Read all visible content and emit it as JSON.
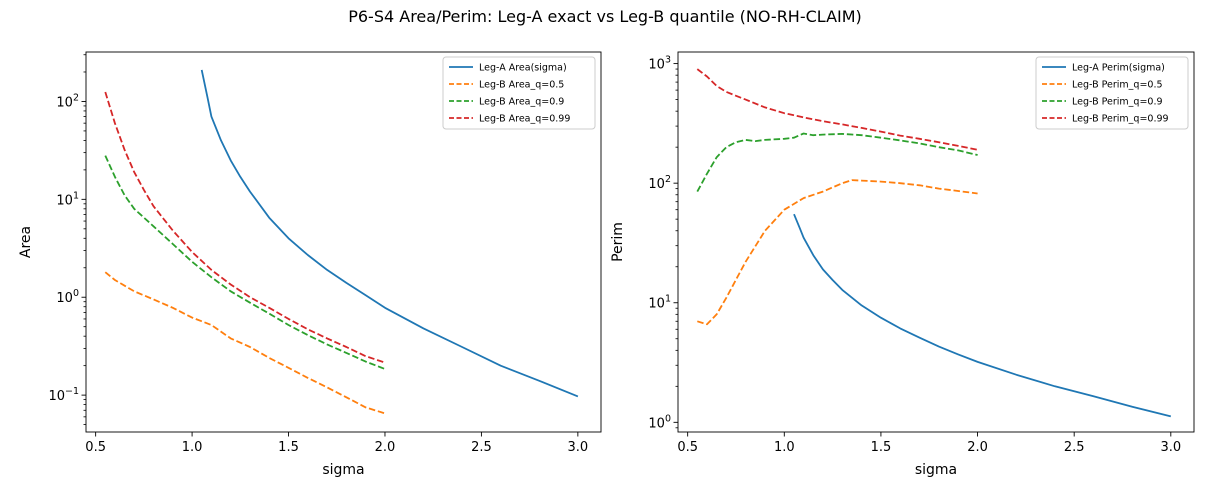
{
  "figure": {
    "title": "P6-S4 Area/Perim: Leg-A exact vs Leg-B quantile (NO-RH-CLAIM)"
  },
  "colors": {
    "blue": "#1f77b4",
    "orange": "#ff7f0e",
    "green": "#2ca02c",
    "red": "#d62728"
  },
  "chart_data": [
    {
      "type": "line",
      "xlabel": "sigma",
      "ylabel": "Area",
      "yscale": "log",
      "xlim": [
        0.45,
        3.12
      ],
      "ylim": [
        0.042,
        320
      ],
      "xticks": [
        0.5,
        1.0,
        1.5,
        2.0,
        2.5,
        3.0
      ],
      "xtick_labels": [
        "0.5",
        "1.0",
        "1.5",
        "2.0",
        "2.5",
        "3.0"
      ],
      "yticks": [
        0.1,
        1,
        10,
        100
      ],
      "ytick_labels": [
        "10^-1",
        "10^0",
        "10^1",
        "10^2"
      ],
      "legend_position": "top-right",
      "series": [
        {
          "name": "Leg-A Area(sigma)",
          "color": "#1f77b4",
          "dash": "solid",
          "x": [
            1.05,
            1.08,
            1.1,
            1.15,
            1.2,
            1.25,
            1.3,
            1.4,
            1.5,
            1.6,
            1.7,
            1.8,
            1.9,
            2.0,
            2.2,
            2.4,
            2.6,
            2.8,
            3.0
          ],
          "y": [
            210,
            110,
            70,
            40,
            25,
            17,
            12,
            6.5,
            4.0,
            2.7,
            1.9,
            1.4,
            1.05,
            0.78,
            0.48,
            0.31,
            0.2,
            0.14,
            0.097
          ]
        },
        {
          "name": "Leg-B Area_q=0.5",
          "color": "#ff7f0e",
          "dash": "dashed",
          "x": [
            0.55,
            0.6,
            0.7,
            0.8,
            0.9,
            1.0,
            1.1,
            1.2,
            1.3,
            1.4,
            1.5,
            1.6,
            1.7,
            1.8,
            1.9,
            2.0
          ],
          "y": [
            1.8,
            1.5,
            1.15,
            0.95,
            0.78,
            0.62,
            0.52,
            0.38,
            0.31,
            0.24,
            0.19,
            0.15,
            0.12,
            0.095,
            0.075,
            0.065
          ]
        },
        {
          "name": "Leg-B Area_q=0.9",
          "color": "#2ca02c",
          "dash": "dashed",
          "x": [
            0.55,
            0.6,
            0.65,
            0.7,
            0.8,
            0.9,
            1.0,
            1.1,
            1.2,
            1.3,
            1.4,
            1.5,
            1.6,
            1.7,
            1.8,
            1.9,
            2.0
          ],
          "y": [
            28,
            17,
            11,
            8.0,
            5.3,
            3.5,
            2.3,
            1.6,
            1.15,
            0.88,
            0.68,
            0.52,
            0.41,
            0.33,
            0.27,
            0.22,
            0.185
          ]
        },
        {
          "name": "Leg-B Area_q=0.99",
          "color": "#d62728",
          "dash": "dashed",
          "x": [
            0.55,
            0.6,
            0.65,
            0.7,
            0.75,
            0.8,
            0.9,
            1.0,
            1.1,
            1.2,
            1.3,
            1.4,
            1.5,
            1.6,
            1.7,
            1.8,
            1.9,
            2.0
          ],
          "y": [
            125,
            60,
            32,
            19,
            12.5,
            8.5,
            4.8,
            2.9,
            1.9,
            1.35,
            1.0,
            0.78,
            0.6,
            0.47,
            0.38,
            0.31,
            0.25,
            0.215
          ]
        }
      ]
    },
    {
      "type": "line",
      "xlabel": "sigma",
      "ylabel": "Perim",
      "yscale": "log",
      "xlim": [
        0.45,
        3.12
      ],
      "ylim": [
        0.83,
        1250
      ],
      "xticks": [
        0.5,
        1.0,
        1.5,
        2.0,
        2.5,
        3.0
      ],
      "xtick_labels": [
        "0.5",
        "1.0",
        "1.5",
        "2.0",
        "2.5",
        "3.0"
      ],
      "yticks": [
        1,
        10,
        100,
        1000
      ],
      "ytick_labels": [
        "10^0",
        "10^1",
        "10^2",
        "10^3"
      ],
      "legend_position": "top-right",
      "series": [
        {
          "name": "Leg-A Perim(sigma)",
          "color": "#1f77b4",
          "dash": "solid",
          "x": [
            1.05,
            1.08,
            1.1,
            1.15,
            1.2,
            1.25,
            1.3,
            1.4,
            1.5,
            1.6,
            1.7,
            1.8,
            1.9,
            2.0,
            2.2,
            2.4,
            2.6,
            2.8,
            3.0
          ],
          "y": [
            55,
            42,
            35,
            25,
            19,
            15.5,
            12.8,
            9.5,
            7.5,
            6.1,
            5.1,
            4.3,
            3.7,
            3.2,
            2.5,
            2.0,
            1.65,
            1.35,
            1.12
          ]
        },
        {
          "name": "Leg-B Perim_q=0.5",
          "color": "#ff7f0e",
          "dash": "dashed",
          "x": [
            0.55,
            0.6,
            0.65,
            0.7,
            0.8,
            0.9,
            1.0,
            1.1,
            1.2,
            1.3,
            1.35,
            1.4,
            1.5,
            1.6,
            1.7,
            1.8,
            1.9,
            2.0
          ],
          "y": [
            7.0,
            6.6,
            8.0,
            11,
            22,
            40,
            60,
            75,
            85,
            100,
            106,
            105,
            103,
            100,
            96,
            90,
            86,
            82
          ]
        },
        {
          "name": "Leg-B Perim_q=0.9",
          "color": "#2ca02c",
          "dash": "dashed",
          "x": [
            0.55,
            0.6,
            0.65,
            0.7,
            0.75,
            0.8,
            0.85,
            0.9,
            1.0,
            1.05,
            1.1,
            1.15,
            1.2,
            1.3,
            1.4,
            1.5,
            1.6,
            1.7,
            1.8,
            1.9,
            2.0
          ],
          "y": [
            85,
            120,
            165,
            200,
            220,
            230,
            225,
            230,
            235,
            240,
            260,
            252,
            255,
            258,
            252,
            240,
            228,
            215,
            200,
            188,
            172
          ]
        },
        {
          "name": "Leg-B Perim_q=0.99",
          "color": "#d62728",
          "dash": "dashed",
          "x": [
            0.55,
            0.6,
            0.65,
            0.7,
            0.8,
            0.9,
            1.0,
            1.1,
            1.2,
            1.3,
            1.4,
            1.5,
            1.6,
            1.7,
            1.8,
            1.9,
            2.0
          ],
          "y": [
            900,
            780,
            650,
            580,
            500,
            430,
            385,
            355,
            330,
            310,
            290,
            270,
            250,
            235,
            220,
            205,
            190
          ]
        }
      ]
    }
  ]
}
